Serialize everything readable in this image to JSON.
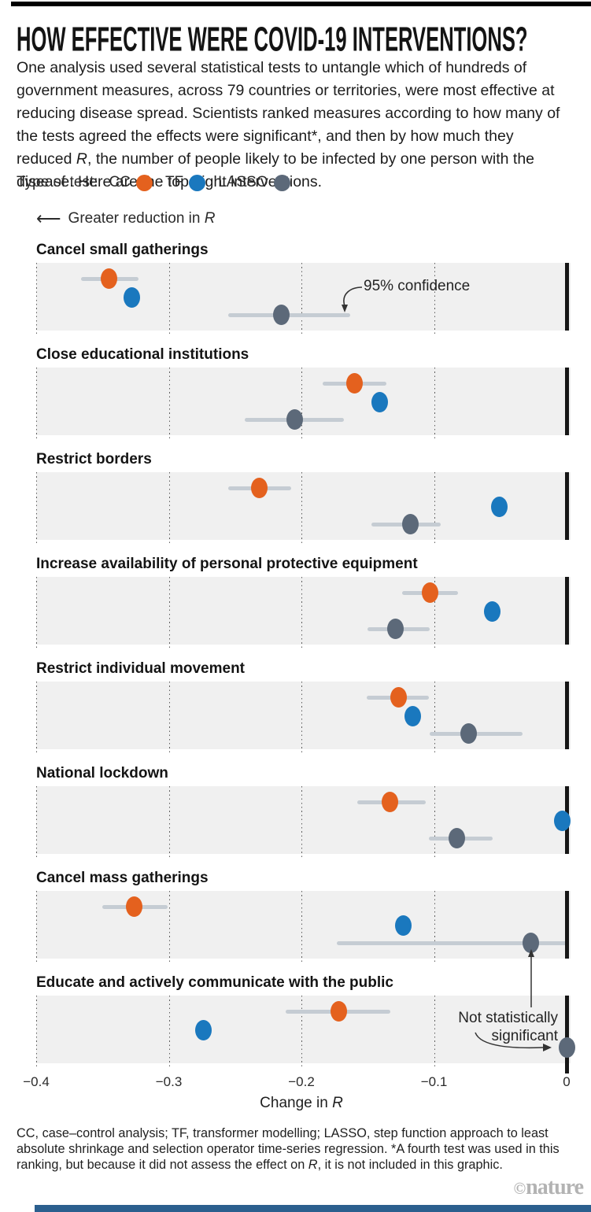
{
  "header": {
    "title": "HOW EFFECTIVE WERE COVID-19 INTERVENTIONS?",
    "intro_before": "One analysis used several statistical tests to untangle which of hundreds of government measures, across 79 countries or territories, were most effective at reducing disease spread. Scientists ranked measures according to how many of the tests agreed the effects were significant*, and then by how much they reduced ",
    "intro_italic": "R",
    "intro_after": ", the number of people likely to be infected by one person with the disease. Here are the top eight interventions."
  },
  "legend": {
    "label": "Type of test:",
    "items": [
      {
        "name": "CC",
        "color": "#e4611e"
      },
      {
        "name": "TF",
        "color": "#1a78be"
      },
      {
        "name": "LASSO",
        "color": "#5c6979"
      }
    ]
  },
  "direction_note": {
    "arrow": "⟵",
    "text_before": "Greater reduction in ",
    "text_italic": "R"
  },
  "chart_data": {
    "type": "dot_plot_with_ci",
    "xlabel_before": "Change in ",
    "xlabel_italic": "R",
    "xlim": [
      -0.4,
      0.003
    ],
    "xticks": [
      -0.4,
      -0.3,
      -0.2,
      -0.1,
      0
    ],
    "xtick_labels": [
      "−0.4",
      "−0.3",
      "−0.2",
      "−0.1",
      "0"
    ],
    "series": [
      "CC",
      "TF",
      "LASSO"
    ],
    "grid": "dotted vertical gridlines at ticks, solid black line at 0",
    "panels": [
      {
        "label": "Cancel small gatherings",
        "points": [
          {
            "test": "CC",
            "value": -0.345,
            "ci": [
              -0.366,
              -0.323
            ]
          },
          {
            "test": "TF",
            "value": -0.328,
            "ci": null
          },
          {
            "test": "LASSO",
            "value": -0.215,
            "ci": [
              -0.255,
              -0.163
            ]
          }
        ]
      },
      {
        "label": "Close educational institutions",
        "points": [
          {
            "test": "CC",
            "value": -0.16,
            "ci": [
              -0.184,
              -0.136
            ]
          },
          {
            "test": "TF",
            "value": -0.141,
            "ci": null
          },
          {
            "test": "LASSO",
            "value": -0.205,
            "ci": [
              -0.243,
              -0.168
            ]
          }
        ]
      },
      {
        "label": "Restrict borders",
        "points": [
          {
            "test": "CC",
            "value": -0.232,
            "ci": [
              -0.255,
              -0.208
            ]
          },
          {
            "test": "TF",
            "value": -0.051,
            "ci": null
          },
          {
            "test": "LASSO",
            "value": -0.118,
            "ci": [
              -0.147,
              -0.095
            ]
          }
        ]
      },
      {
        "label": "Increase availability of personal protective equipment",
        "points": [
          {
            "test": "CC",
            "value": -0.103,
            "ci": [
              -0.124,
              -0.082
            ]
          },
          {
            "test": "TF",
            "value": -0.056,
            "ci": null
          },
          {
            "test": "LASSO",
            "value": -0.129,
            "ci": [
              -0.15,
              -0.103
            ]
          }
        ]
      },
      {
        "label": "Restrict individual movement",
        "points": [
          {
            "test": "CC",
            "value": -0.127,
            "ci": [
              -0.151,
              -0.104
            ]
          },
          {
            "test": "TF",
            "value": -0.116,
            "ci": null
          },
          {
            "test": "LASSO",
            "value": -0.074,
            "ci": [
              -0.103,
              -0.033
            ]
          }
        ]
      },
      {
        "label": "National lockdown",
        "points": [
          {
            "test": "CC",
            "value": -0.133,
            "ci": [
              -0.158,
              -0.106
            ]
          },
          {
            "test": "TF",
            "value": -0.003,
            "ci": null
          },
          {
            "test": "LASSO",
            "value": -0.083,
            "ci": [
              -0.104,
              -0.056
            ]
          }
        ]
      },
      {
        "label": "Cancel mass gatherings",
        "points": [
          {
            "test": "CC",
            "value": -0.326,
            "ci": [
              -0.35,
              -0.301
            ]
          },
          {
            "test": "TF",
            "value": -0.123,
            "ci": null
          },
          {
            "test": "LASSO",
            "value": -0.027,
            "ci": [
              -0.173,
              0.001
            ]
          }
        ]
      },
      {
        "label": "Educate and actively communicate with the public",
        "points": [
          {
            "test": "CC",
            "value": -0.172,
            "ci": [
              -0.212,
              -0.133
            ]
          },
          {
            "test": "TF",
            "value": -0.274,
            "ci": null
          },
          {
            "test": "LASSO",
            "value": 0.0,
            "ci": null
          }
        ]
      }
    ],
    "annotations": {
      "confidence": {
        "text": "95% confidence",
        "panel": "Cancel small gatherings"
      },
      "not_significant": {
        "text": "Not statistically significant",
        "panels": [
          "Cancel mass gatherings",
          "Educate and actively communicate with the public"
        ]
      }
    }
  },
  "footnote": {
    "before": "CC, case–control analysis; TF, transformer modelling; LASSO, step function approach to least absolute shrinkage and selection operator time-series regression. *A fourth test was used in this ranking, but because it did not assess the effect on ",
    "italic": "R",
    "after": ", it is not included in this graphic."
  },
  "credit": {
    "symbol": "©",
    "name": "nature"
  },
  "colors": {
    "cc": "#e4611e",
    "tf": "#1a78be",
    "lasso": "#5c6979",
    "ci_bar": "#c5ccd3",
    "panel_bg": "#f0f0f0",
    "zero_line": "#161616",
    "top_bar": "#000000",
    "bottom_bar": "#2b5f8e",
    "credit_gray": "#b3b3b3"
  }
}
